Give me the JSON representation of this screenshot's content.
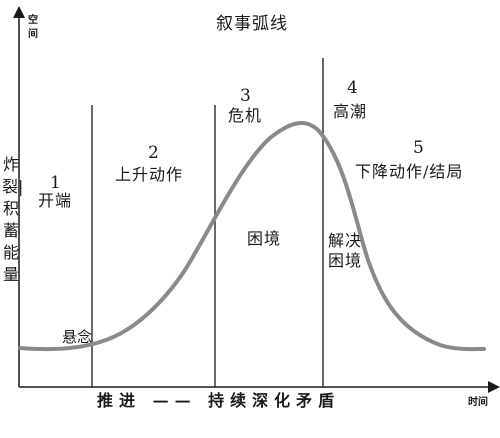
{
  "title": "叙事弧线",
  "axes": {
    "y_label": "空间",
    "x_label": "时间"
  },
  "side_label": "炸裂|积蓄能量",
  "suspense_label": "悬念",
  "bottom_caption": "推进 —— 持续深化矛盾",
  "sections": [
    {
      "number": "1",
      "label": "开端"
    },
    {
      "number": "2",
      "label": "上升动作"
    },
    {
      "number": "3",
      "label": "危机"
    },
    {
      "number": "4",
      "label": "高潮"
    },
    {
      "number": "5",
      "label": "下降动作/结局"
    }
  ],
  "inner_labels": {
    "plight": "困境",
    "resolve_plight": "解决困境"
  },
  "colors": {
    "curve": "#8a8a8a",
    "lines": "#1a1a1a"
  }
}
